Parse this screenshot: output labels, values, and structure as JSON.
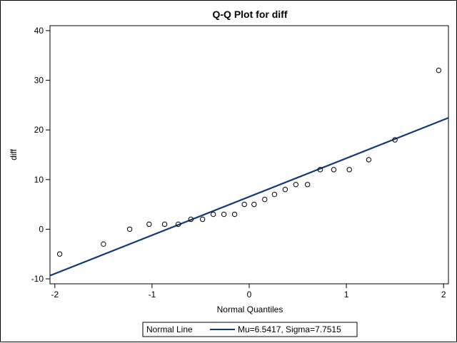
{
  "chart_data": {
    "type": "scatter",
    "title": "Q-Q Plot for diff",
    "xlabel": "Normal Quantiles",
    "ylabel": "diff",
    "xlim": [
      -2.05,
      2.05
    ],
    "ylim": [
      -11,
      41
    ],
    "xticks": [
      -2,
      -1,
      0,
      1,
      2
    ],
    "yticks": [
      -10,
      0,
      10,
      20,
      30,
      40
    ],
    "grid": false,
    "series": [
      {
        "marker": "open-circle",
        "color": "#000000",
        "points": [
          {
            "x": -1.95,
            "y": -5
          },
          {
            "x": -1.5,
            "y": -3
          },
          {
            "x": -1.23,
            "y": 0
          },
          {
            "x": -1.03,
            "y": 1
          },
          {
            "x": -0.87,
            "y": 1
          },
          {
            "x": -0.73,
            "y": 1
          },
          {
            "x": -0.6,
            "y": 2
          },
          {
            "x": -0.48,
            "y": 2
          },
          {
            "x": -0.37,
            "y": 3
          },
          {
            "x": -0.26,
            "y": 3
          },
          {
            "x": -0.15,
            "y": 3
          },
          {
            "x": -0.05,
            "y": 5
          },
          {
            "x": 0.05,
            "y": 5
          },
          {
            "x": 0.16,
            "y": 6
          },
          {
            "x": 0.26,
            "y": 7
          },
          {
            "x": 0.37,
            "y": 8
          },
          {
            "x": 0.48,
            "y": 9
          },
          {
            "x": 0.6,
            "y": 9
          },
          {
            "x": 0.73,
            "y": 12
          },
          {
            "x": 0.87,
            "y": 12
          },
          {
            "x": 1.03,
            "y": 12
          },
          {
            "x": 1.23,
            "y": 14
          },
          {
            "x": 1.5,
            "y": 18
          },
          {
            "x": 1.95,
            "y": 32
          }
        ]
      }
    ],
    "reference_line": {
      "label": "Normal Line",
      "description": "Mu=6.5417, Sigma=7.7515",
      "mu": 6.5417,
      "sigma": 7.7515,
      "color": "#0f3a7a"
    },
    "legend": {
      "position": "bottom-center"
    }
  }
}
